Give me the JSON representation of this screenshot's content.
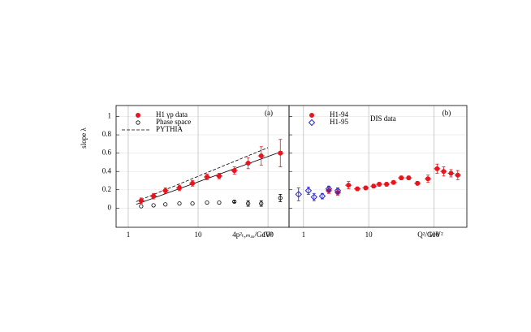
{
  "chart_data": [
    {
      "type": "scatter",
      "panel_label": "(a)",
      "x_label": "4p²ₜ,ₘₐₓ/GeV²",
      "y_label": "slope λ",
      "log_x": true,
      "xlim": [
        0.67,
        200
      ],
      "xticks": [
        1,
        10,
        100
      ],
      "ylim": [
        -0.21,
        1.12
      ],
      "yticks": [
        0,
        0.2,
        0.4,
        0.6,
        0.8,
        1
      ],
      "ytick_labels": true,
      "grid": true,
      "series": [
        {
          "name": "H1 γp data",
          "color": "#e8141e",
          "marker": "circle-filled",
          "x": [
            1.53,
            2.3,
            3.4,
            5.4,
            8.3,
            13.4,
            20,
            33,
            52,
            80,
            150
          ],
          "values": [
            0.08,
            0.13,
            0.19,
            0.22,
            0.27,
            0.34,
            0.35,
            0.41,
            0.49,
            0.57,
            0.6
          ],
          "errors": [
            0.03,
            0.03,
            0.03,
            0.03,
            0.03,
            0.03,
            0.03,
            0.04,
            0.06,
            0.1,
            0.15
          ]
        },
        {
          "name": "Phase space",
          "color": "#000000",
          "marker": "circle-open",
          "x": [
            1.53,
            2.3,
            3.4,
            5.4,
            8.3,
            13.4,
            20,
            33,
            52,
            80,
            150
          ],
          "values": [
            0.02,
            0.03,
            0.04,
            0.05,
            0.05,
            0.06,
            0.06,
            0.07,
            0.05,
            0.05,
            0.11
          ],
          "errors": [
            0,
            0,
            0,
            0,
            0,
            0,
            0,
            0.01,
            0.03,
            0.03,
            0.04
          ]
        }
      ],
      "lines": [
        {
          "name": "PYTHIA",
          "color": "#000000",
          "style": "dashed",
          "x": [
            1.3,
            100
          ],
          "values": [
            0.07,
            0.66
          ]
        },
        {
          "color": "#000000",
          "style": "solid",
          "x": [
            1.3,
            160
          ],
          "values": [
            0.04,
            0.62
          ]
        }
      ]
    },
    {
      "type": "scatter",
      "panel_label": "(b)",
      "note": "DIS data",
      "x_label": "Q²/GeV²",
      "log_x": true,
      "xlim": [
        0.6,
        320
      ],
      "xticks": [
        1,
        10,
        100
      ],
      "ylim": [
        -0.21,
        1.12
      ],
      "yticks": [
        0,
        0.2,
        0.4,
        0.6,
        0.8,
        1
      ],
      "ytick_labels": false,
      "grid": true,
      "series": [
        {
          "name": "H1-94",
          "color": "#e8141e",
          "marker": "circle-filled",
          "x": [
            2.44,
            3.35,
            4.9,
            6.7,
            9,
            11.9,
            14.5,
            18.8,
            24,
            31.6,
            41,
            56,
            81,
            112,
            141,
            183,
            232
          ],
          "values": [
            0.19,
            0.17,
            0.25,
            0.21,
            0.22,
            0.24,
            0.26,
            0.26,
            0.28,
            0.33,
            0.33,
            0.27,
            0.32,
            0.43,
            0.4,
            0.38,
            0.36
          ],
          "errors": [
            0.03,
            0.03,
            0.04,
            0.02,
            0.02,
            0.02,
            0.02,
            0.02,
            0.02,
            0.02,
            0.02,
            0.02,
            0.04,
            0.05,
            0.05,
            0.04,
            0.05
          ]
        },
        {
          "name": "H1-95",
          "color": "#2a2ad0",
          "marker": "diamond-open",
          "x": [
            0.84,
            1.19,
            1.45,
            1.94,
            2.44,
            3.35
          ],
          "values": [
            0.15,
            0.19,
            0.12,
            0.13,
            0.21,
            0.19
          ],
          "errors": [
            0.07,
            0.04,
            0.04,
            0.03,
            0.03,
            0.03
          ]
        }
      ]
    }
  ]
}
